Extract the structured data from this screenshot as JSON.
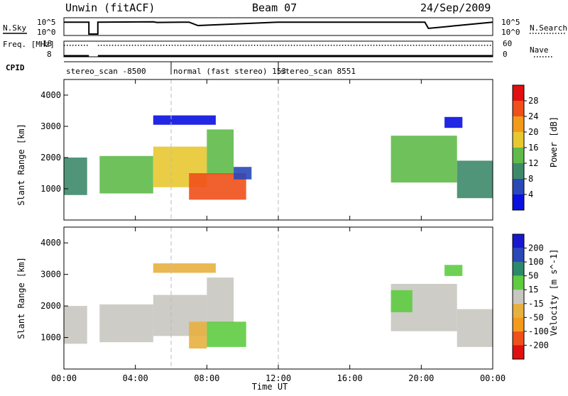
{
  "header": {
    "station": "Unwin (fitACF)",
    "beam": "Beam 07",
    "date": "24/Sep/2009"
  },
  "colors": {
    "power_scale": [
      "#0a10e0",
      "#2a48b8",
      "#3d8a6a",
      "#5fba4a",
      "#e8c830",
      "#f39a1a",
      "#f0501a",
      "#e01010"
    ],
    "velocity_scale": [
      "#e01010",
      "#f0501a",
      "#f39a1a",
      "#e8b040",
      "#c8c6c0",
      "#5fcc40",
      "#2a8a6a",
      "#2a48b8",
      "#1818d0"
    ],
    "ground_scatter": "#c8c6c0"
  },
  "chart_data": [
    {
      "type": "line",
      "panel": "noise",
      "left_label": "N.Sky",
      "right_label": "N.Search",
      "left_ticks": [
        "10^5",
        "10^0"
      ],
      "right_ticks": [
        "10^5",
        "10^0"
      ],
      "ylim": [
        0,
        5
      ],
      "x_hours": [
        0,
        1.4,
        1.4,
        1.9,
        1.9,
        5.0,
        5.2,
        7.0,
        7.5,
        12,
        18,
        20.2,
        20.4,
        24
      ],
      "y_log10": [
        4.2,
        4.2,
        0,
        0,
        4.2,
        4.3,
        4.1,
        4.2,
        3.0,
        4.2,
        4.2,
        4.2,
        2.0,
        4.2
      ]
    },
    {
      "type": "line",
      "panel": "frequency",
      "left_label": "Freq. [MHz]",
      "right_label": "Nave",
      "left_ticks": [
        "18",
        "8"
      ],
      "right_ticks": [
        "60",
        "0"
      ],
      "series": [
        {
          "values_hours": [
            0,
            1.4,
            1.9,
            24
          ],
          "freq_mhz": [
            10.5,
            10.5,
            10.5,
            10.5
          ]
        },
        {
          "values_hours": [
            0,
            1.4,
            1.9,
            24
          ],
          "nave": [
            32,
            32,
            32,
            32
          ]
        }
      ]
    },
    {
      "type": "table",
      "panel": "cpid",
      "label": "CPID",
      "segments": [
        {
          "start_hours": 0,
          "end_hours": 6,
          "text": "stereo_scan -8500"
        },
        {
          "start_hours": 6,
          "end_hours": 12,
          "text": "normal (fast stereo) 153"
        },
        {
          "start_hours": 12,
          "end_hours": 24,
          "text": "stereo_scan 8551"
        }
      ]
    },
    {
      "type": "heatmap",
      "panel": "power",
      "ylabel": "Slant Range [km]",
      "ylim": [
        0,
        4500
      ],
      "xlim_hours": [
        0,
        24
      ],
      "y_ticks": [
        "1000",
        "2000",
        "3000",
        "4000"
      ],
      "colorbar_label": "Power [dB]",
      "colorbar_ticks": [
        "4",
        "8",
        "12",
        "16",
        "20",
        "24",
        "28"
      ],
      "bands": [
        {
          "t_start": 0.0,
          "t_end": 1.3,
          "r_low": 800,
          "r_high": 2000,
          "level": 2
        },
        {
          "t_start": 2.0,
          "t_end": 5.0,
          "r_low": 850,
          "r_high": 2050,
          "level": 3
        },
        {
          "t_start": 5.0,
          "t_end": 8.0,
          "r_low": 1050,
          "r_high": 2350,
          "level": 4
        },
        {
          "t_start": 8.0,
          "t_end": 9.5,
          "r_low": 1450,
          "r_high": 2900,
          "level": 3
        },
        {
          "t_start": 7.0,
          "t_end": 10.2,
          "r_low": 650,
          "r_high": 1500,
          "level": 6
        },
        {
          "t_start": 9.5,
          "t_end": 10.5,
          "r_low": 1300,
          "r_high": 1700,
          "level": 1
        },
        {
          "t_start": 5.0,
          "t_end": 8.5,
          "r_low": 3050,
          "r_high": 3350,
          "level": 0
        },
        {
          "t_start": 18.3,
          "t_end": 22.0,
          "r_low": 1200,
          "r_high": 2700,
          "level": 3
        },
        {
          "t_start": 22.0,
          "t_end": 24.0,
          "r_low": 700,
          "r_high": 1900,
          "level": 2
        },
        {
          "t_start": 21.3,
          "t_end": 22.3,
          "r_low": 2950,
          "r_high": 3300,
          "level": 0
        }
      ]
    },
    {
      "type": "heatmap",
      "panel": "velocity",
      "ylabel": "Slant Range [km]",
      "xlabel": "Time UT",
      "ylim": [
        0,
        4500
      ],
      "xlim_hours": [
        0,
        24
      ],
      "y_ticks": [
        "1000",
        "2000",
        "3000",
        "4000"
      ],
      "x_ticks": [
        "00:00",
        "04:00",
        "08:00",
        "12:00",
        "16:00",
        "20:00",
        "00:00"
      ],
      "colorbar_label": "Velocity [m s^-1]",
      "colorbar_ticks": [
        "-200",
        "-100",
        "-50",
        "-15",
        "15",
        "50",
        "100",
        "200"
      ],
      "bands": [
        {
          "t_start": 0.0,
          "t_end": 1.3,
          "r_low": 800,
          "r_high": 2000,
          "level": 4
        },
        {
          "t_start": 2.0,
          "t_end": 5.0,
          "r_low": 850,
          "r_high": 2050,
          "level": 4
        },
        {
          "t_start": 5.0,
          "t_end": 8.0,
          "r_low": 1050,
          "r_high": 2350,
          "level": 4
        },
        {
          "t_start": 8.0,
          "t_end": 9.5,
          "r_low": 1450,
          "r_high": 2900,
          "level": 4
        },
        {
          "t_start": 7.0,
          "t_end": 8.0,
          "r_low": 650,
          "r_high": 1500,
          "level": 3
        },
        {
          "t_start": 8.0,
          "t_end": 10.2,
          "r_low": 700,
          "r_high": 1500,
          "level": 5
        },
        {
          "t_start": 5.0,
          "t_end": 8.5,
          "r_low": 3050,
          "r_high": 3350,
          "level": 3
        },
        {
          "t_start": 18.3,
          "t_end": 22.0,
          "r_low": 1200,
          "r_high": 2700,
          "level": 4
        },
        {
          "t_start": 18.3,
          "t_end": 19.5,
          "r_low": 1800,
          "r_high": 2500,
          "level": 5
        },
        {
          "t_start": 22.0,
          "t_end": 24.0,
          "r_low": 700,
          "r_high": 1900,
          "level": 4
        },
        {
          "t_start": 21.3,
          "t_end": 22.3,
          "r_low": 2950,
          "r_high": 3300,
          "level": 5
        }
      ]
    }
  ]
}
